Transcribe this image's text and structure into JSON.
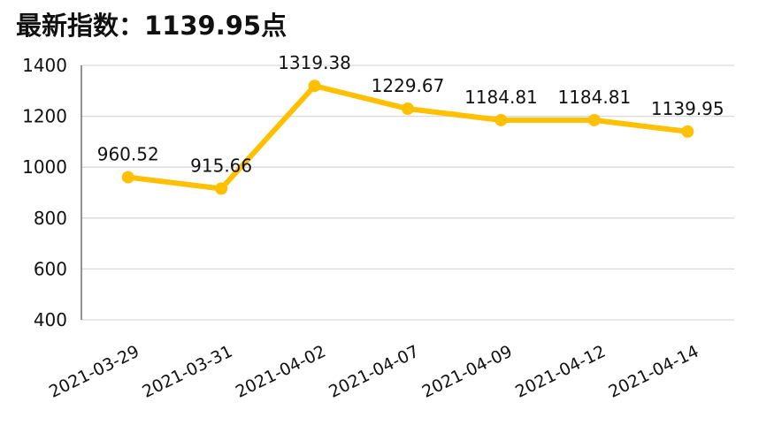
{
  "header": {
    "title_prefix": "最新指数：",
    "title_value": "1139.95",
    "title_suffix": "点"
  },
  "chart_data": {
    "type": "line",
    "title": "最新指数：1139.95点",
    "categories": [
      "2021-03-29",
      "2021-03-31",
      "2021-04-02",
      "2021-04-07",
      "2021-04-09",
      "2021-04-12",
      "2021-04-14"
    ],
    "series": [
      {
        "values": [
          960.52,
          915.66,
          1319.38,
          1229.67,
          1184.81,
          1184.81,
          1139.95
        ]
      }
    ],
    "data_labels": [
      "960.52",
      "915.66",
      "1319.38",
      "1229.67",
      "1184.81",
      "1184.81",
      "1139.95"
    ],
    "yticks": [
      "400",
      "600",
      "800",
      "1000",
      "1200",
      "1400"
    ],
    "ylim": [
      400,
      1400
    ],
    "grid": true,
    "legend": "none",
    "colors": {
      "line": "#FFC000",
      "grid": "#D9D9D9",
      "axis": "#595959"
    }
  }
}
